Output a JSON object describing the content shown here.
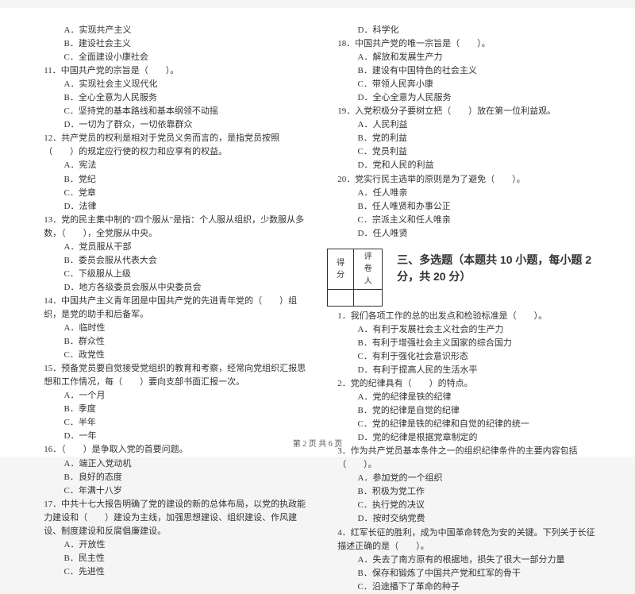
{
  "footer": "第 2 页 共 6 页",
  "section3_title": "三、多选题（本题共 10 小题，每小题 2 分，共 20 分）",
  "score_header1": "得分",
  "score_header2": "评卷人",
  "left": {
    "pre_opts": [
      "A．实现共产主义",
      "B．建设社会主义",
      "C．全面建设小康社会"
    ],
    "q11": "11．中国共产党的宗旨是（　　）。",
    "q11_opts": [
      "A．实现社会主义现代化",
      "B．全心全意为人民服务",
      "C．坚持党的基本路线和基本纲领不动摇",
      "D．一切为了群众，一切依靠群众"
    ],
    "q12": "12．共产党员的权利是相对于党员义务而言的，是指党员按照（　　）的规定应行使的权力和应享有的权益。",
    "q12_opts": [
      "A．宪法",
      "B．党纪",
      "C．党章",
      "D．法律"
    ],
    "q13": "13．党的民主集中制的\"四个服从\"是指：个人服从组织，少数服从多数，（　　），全党服从中央。",
    "q13_opts": [
      "A．党员服从干部",
      "B．委员会服从代表大会",
      "C．下级服从上级",
      "D．地方各级委员会服从中央委员会"
    ],
    "q14": "14．中国共产主义青年团是中国共产党的先进青年党的（　　）组织，是党的助手和后备军。",
    "q14_opts": [
      "A．临时性",
      "B．群众性",
      "C．政党性"
    ],
    "q15": "15．预备党员要自觉接受党组织的教育和考察，经常向党组织汇报思想和工作情况，每（　　）要向支部书面汇报一次。",
    "q15_opts": [
      "A．一个月",
      "B．季度",
      "C．半年",
      "D．一年"
    ],
    "q16": "16．（　　）是争取入党的首要问题。",
    "q16_opts": [
      "A．端正入党动机",
      "B．良好的态度",
      "C．年满十八岁"
    ],
    "q17": "17．中共十七大报告明确了党的建设的新的总体布局，以党的执政能力建设和（　　）建设为主线，加强思想建设、组织建设、作风建设、制度建设和反腐倡廉建设。",
    "q17_opts": [
      "A．开放性",
      "B．民主性",
      "C．先进性"
    ]
  },
  "right": {
    "pre_opts": [
      "D．科学化"
    ],
    "q18": "18．中国共产党的唯一宗旨是（　　）。",
    "q18_opts": [
      "A．解放和发展生产力",
      "B．建设有中国特色的社会主义",
      "C．带领人民奔小康",
      "D．全心全意为人民服务"
    ],
    "q19": "19．入党积极分子要树立把（　　）放在第一位利益观。",
    "q19_opts": [
      "A．人民利益",
      "B．党的利益",
      "C．党员利益",
      "D．党和人民的利益"
    ],
    "q20": "20．党实行民主选举的原则是为了避免（　　）。",
    "q20_opts": [
      "A．任人唯亲",
      "B．任人唯贤和办事公正",
      "C．宗派主义和任人唯亲",
      "D．任人唯贤"
    ],
    "m1": "1．我们各项工作的总的出发点和检验标准是（　　）。",
    "m1_opts": [
      "A．有利于发展社会主义社会的生产力",
      "B．有利于增强社会主义国家的综合国力",
      "C．有利于强化社会意识形态",
      "D．有利于提高人民的生活水平"
    ],
    "m2": "2．党的纪律具有（　　）的特点。",
    "m2_opts": [
      "A．党的纪律是铁的纪律",
      "B．党的纪律是自觉的纪律",
      "C．党的纪律是铁的纪律和自觉的纪律的统一",
      "D．党的纪律是根据党章制定的"
    ],
    "m3": "3．作为共产党员基本条件之一的组织纪律条件的主要内容包括（　　）。",
    "m3_opts": [
      "A．参加党的一个组织",
      "B．积极为党工作",
      "C．执行党的决议",
      "D．按时交纳党费"
    ],
    "m4": "4．红军长征的胜利，成为中国革命转危为安的关键。下列关于长征描述正确的是（　　）。",
    "m4_opts": [
      "A．失去了南方原有的根据地，损失了很大一部分力量",
      "B．保存和锻炼了中国共产党和红军的骨干",
      "C．沿途播下了革命的种子"
    ]
  }
}
